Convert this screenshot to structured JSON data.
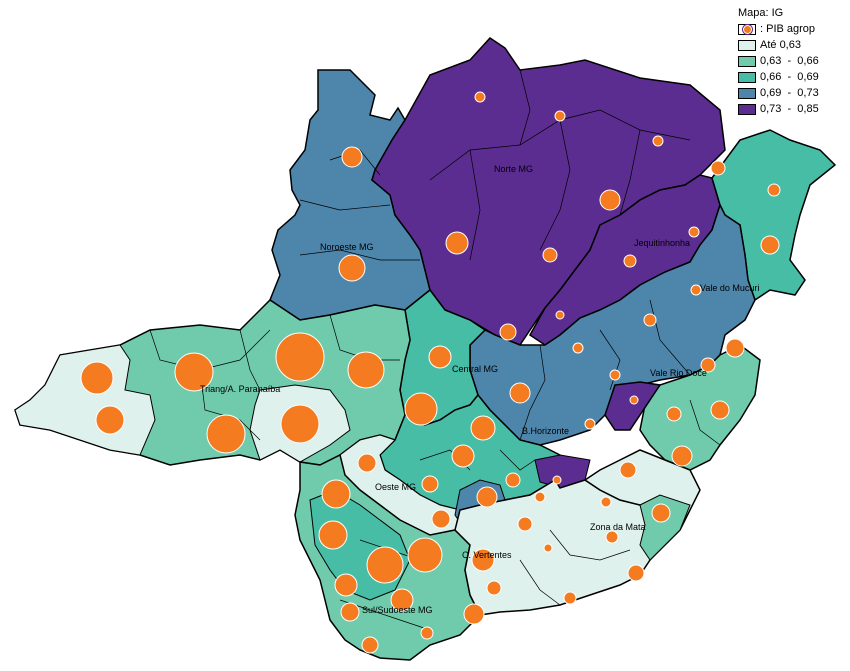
{
  "legend": {
    "title": "Mapa: IG",
    "bubble_label": ": PIB agrop",
    "classes": [
      {
        "label": "Até 0,63",
        "color": "#dff1ec"
      },
      {
        "label": "0,63  -  0,66",
        "color": "#6fcbab"
      },
      {
        "label": "0,66  -  0,69",
        "color": "#47bda6"
      },
      {
        "label": "0,69  -  0,73",
        "color": "#4e86ab"
      },
      {
        "label": "0,73  -  0,85",
        "color": "#5b2d90"
      }
    ],
    "bubble_color": "#f47b20"
  },
  "regions": [
    {
      "name": "Norte MG"
    },
    {
      "name": "Jequitinhonha"
    },
    {
      "name": "Noroeste MG"
    },
    {
      "name": "Vale do Mucuri"
    },
    {
      "name": "Triang/A. Paranaíba"
    },
    {
      "name": "Central MG"
    },
    {
      "name": "Vale Rio Doce"
    },
    {
      "name": "B.Horizonte"
    },
    {
      "name": "Oeste MG"
    },
    {
      "name": "Zona da Mata"
    },
    {
      "name": "C. Vertentes"
    },
    {
      "name": "Sul/Sudoeste MG"
    }
  ]
}
